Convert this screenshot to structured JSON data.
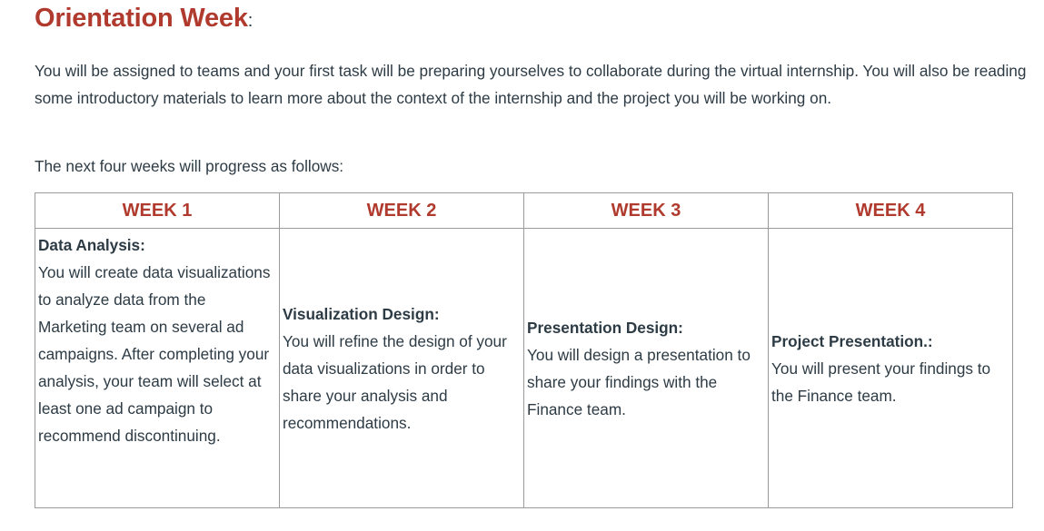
{
  "page": {
    "title": "Orientation Week",
    "title_suffix": ":",
    "intro": "You will be assigned to teams and your first task will be preparing yourselves to collaborate during the virtual internship. You will also be reading some introductory materials to learn more about the context of the internship and the project you will be working on.",
    "lead": "The next four weeks will progress as follows:"
  },
  "schedule": {
    "headers": [
      "WEEK 1",
      "WEEK 2",
      "WEEK 3",
      "WEEK 4"
    ],
    "cells": [
      {
        "heading": "Data Analysis:",
        "body": "You will create data visualizations to analyze data from the Marketing team on several ad campaigns. After completing your analysis, your team will select at least one ad campaign to recommend discontinuing."
      },
      {
        "heading": "Visualization Design:",
        "body": "You will refine the design of your data visualizations in order to share your analysis and recommendations."
      },
      {
        "heading": "Presentation Design:",
        "body": "You will design a presentation to share your findings with the Finance team."
      },
      {
        "heading": "Project Presentation.:",
        "body": "You will present your findings to the Finance team."
      }
    ]
  },
  "colors": {
    "accent": "#b03a2e",
    "text": "#2d3b45",
    "border": "#9b9b9b"
  }
}
